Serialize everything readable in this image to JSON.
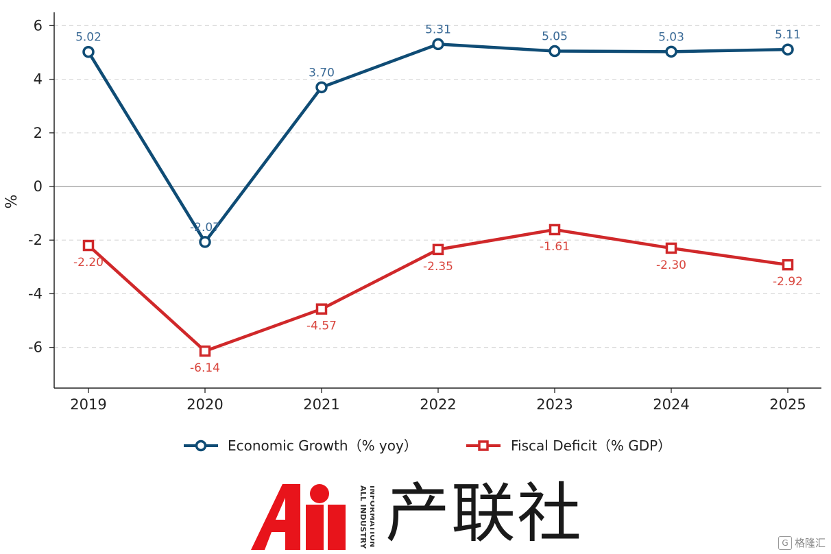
{
  "chart_data": {
    "type": "line",
    "x": [
      "2019",
      "2020",
      "2021",
      "2022",
      "2023",
      "2024",
      "2025"
    ],
    "ylabel": "%",
    "ylim": [
      -7.5,
      6.5
    ],
    "yticks": [
      "6",
      "4",
      "2",
      "0",
      "-2",
      "-4",
      "-6"
    ],
    "ytick_values": [
      6,
      4,
      2,
      0,
      -2,
      -4,
      -6
    ],
    "grid": "horizontal dashed",
    "legend": "bottom-center",
    "series": [
      {
        "name": "Economic Growth（% yoy）",
        "values": [
          5.02,
          -2.07,
          3.7,
          5.31,
          5.05,
          5.03,
          5.11
        ],
        "labels": [
          "5.02",
          "-2.07",
          "3.70",
          "5.31",
          "5.05",
          "5.03",
          "5.11"
        ],
        "color": "#0f4c75",
        "label_color": "#3a6a96",
        "marker": "circle"
      },
      {
        "name": "Fiscal Deficit（% GDP）",
        "values": [
          -2.2,
          -6.14,
          -4.57,
          -2.35,
          -1.61,
          -2.3,
          -2.92
        ],
        "labels": [
          "-2.20",
          "-6.14",
          "-4.57",
          "-2.35",
          "-1.61",
          "-2.30",
          "-2.92"
        ],
        "color": "#d0282a",
        "label_color": "#d9473f",
        "marker": "square"
      }
    ]
  },
  "branding": {
    "logo_text": "产联社",
    "logo_en": "ALL INDUSTRY INFORMATION",
    "watermark": "格隆汇",
    "watermark_icon": "G"
  },
  "colors": {
    "logo_red": "#e8141b"
  }
}
